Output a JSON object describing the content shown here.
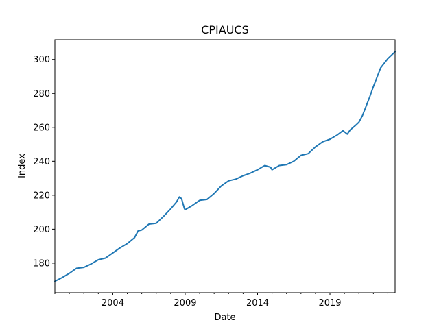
{
  "chart_data": {
    "type": "line",
    "title": "CPIAUCS",
    "xlabel": "Date",
    "ylabel": "Index",
    "x_start": "2000-01",
    "x_end": "2023-06",
    "xlim_decimal_year": [
      2000.0,
      2023.5
    ],
    "ylim": [
      162.6,
      311.6
    ],
    "x_ticks": [
      {
        "value": 2004,
        "label": "2004"
      },
      {
        "value": 2009,
        "label": "2009"
      },
      {
        "value": 2014,
        "label": "2014"
      },
      {
        "value": 2019,
        "label": "2019"
      }
    ],
    "y_ticks": [
      {
        "value": 180,
        "label": "180"
      },
      {
        "value": 200,
        "label": "200"
      },
      {
        "value": 220,
        "label": "220"
      },
      {
        "value": 240,
        "label": "240"
      },
      {
        "value": 260,
        "label": "260"
      },
      {
        "value": 280,
        "label": "280"
      },
      {
        "value": 300,
        "label": "300"
      }
    ],
    "grid": false,
    "legend": null,
    "line_color": "#1f77b4",
    "series": [
      {
        "x": [
          2000.0,
          2000.5,
          2001.0,
          2001.5,
          2002.0,
          2002.5,
          2003.0,
          2003.5,
          2004.0,
          2004.5,
          2005.0,
          2005.5,
          2005.75,
          2006.0,
          2006.5,
          2007.0,
          2007.5,
          2008.0,
          2008.4,
          2008.6,
          2008.75,
          2008.95,
          2009.0,
          2009.5,
          2010.0,
          2010.5,
          2011.0,
          2011.5,
          2012.0,
          2012.5,
          2013.0,
          2013.5,
          2014.0,
          2014.5,
          2014.9,
          2015.0,
          2015.5,
          2016.0,
          2016.5,
          2017.0,
          2017.5,
          2018.0,
          2018.5,
          2019.0,
          2019.5,
          2019.9,
          2020.2,
          2020.4,
          2020.75,
          2021.0,
          2021.25,
          2021.5,
          2021.75,
          2022.0,
          2022.5,
          2023.0,
          2023.5
        ],
        "y": [
          169.3,
          171.5,
          174.0,
          177.0,
          177.5,
          179.5,
          182.0,
          183.0,
          186.0,
          189.0,
          191.5,
          195.0,
          199.0,
          199.5,
          203.0,
          203.5,
          207.5,
          212.0,
          216.0,
          219.0,
          218.0,
          212.0,
          211.5,
          214.0,
          217.0,
          217.5,
          221.0,
          225.5,
          228.5,
          229.5,
          231.5,
          233.0,
          235.0,
          237.5,
          236.5,
          235.0,
          237.5,
          238.0,
          240.0,
          243.5,
          244.5,
          248.5,
          251.5,
          253.0,
          255.5,
          258.0,
          256.0,
          258.5,
          261.0,
          263.0,
          267.0,
          272.5,
          278.0,
          284.0,
          295.0,
          300.5,
          304.5
        ]
      }
    ]
  }
}
